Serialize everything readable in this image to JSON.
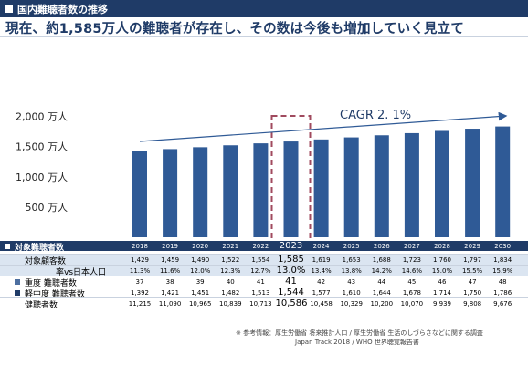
{
  "header": {
    "title": "国内難聴者数の推移"
  },
  "headline": "現在、約1,585万人の難聴者が存在し、その数は今後も増加していく見立て",
  "colors": {
    "bar": "#2f5a96",
    "header_bg": "#1f3b67",
    "highlight_border": "#a04a5e"
  },
  "chart_data": {
    "type": "bar",
    "categories": [
      "2018",
      "2019",
      "2020",
      "2021",
      "2022",
      "2023",
      "2024",
      "2025",
      "2026",
      "2027",
      "2028",
      "2029",
      "2030"
    ],
    "values": [
      1429,
      1459,
      1490,
      1522,
      1554,
      1585,
      1619,
      1653,
      1688,
      1723,
      1760,
      1797,
      1834
    ],
    "ylim": [
      0,
      2000
    ],
    "yticks": [
      {
        "value": 500,
        "label": "500 万人"
      },
      {
        "value": 1000,
        "label": "1,000 万人"
      },
      {
        "value": 1500,
        "label": "1,500 万人"
      },
      {
        "value": 2000,
        "label": "2,000 万人"
      }
    ],
    "highlight_category": "2023",
    "annotation": "CAGR 2. 1%",
    "grid": false
  },
  "table": {
    "header_label": "対象難聴者数",
    "years": [
      "2018",
      "2019",
      "2020",
      "2021",
      "2022",
      "2023",
      "2024",
      "2025",
      "2026",
      "2027",
      "2028",
      "2029",
      "2030"
    ],
    "rows": [
      {
        "label": "対象顧客数",
        "values": [
          "1,429",
          "1,459",
          "1,490",
          "1,522",
          "1,554",
          "1,585",
          "1,619",
          "1,653",
          "1,688",
          "1,723",
          "1,760",
          "1,797",
          "1,834"
        ]
      },
      {
        "label": "率vs日本人口",
        "values": [
          "11.3%",
          "11.6%",
          "12.0%",
          "12.3%",
          "12.7%",
          "13.0%",
          "13.4%",
          "13.8%",
          "14.2%",
          "14.6%",
          "15.0%",
          "15.5%",
          "15.9%"
        ]
      },
      {
        "label": "重度 難聴者数",
        "values": [
          "37",
          "38",
          "39",
          "40",
          "41",
          "41",
          "42",
          "43",
          "44",
          "45",
          "46",
          "47",
          "48"
        ]
      },
      {
        "label": "軽中度 難聴者数",
        "values": [
          "1,392",
          "1,421",
          "1,451",
          "1,482",
          "1,513",
          "1,544",
          "1,577",
          "1,610",
          "1,644",
          "1,678",
          "1,714",
          "1,750",
          "1,786"
        ]
      },
      {
        "label": "健聴者数",
        "values": [
          "11,215",
          "11,090",
          "10,965",
          "10,839",
          "10,713",
          "10,586",
          "10,458",
          "10,329",
          "10,200",
          "10,070",
          "9,939",
          "9,808",
          "9,676"
        ]
      }
    ]
  },
  "footnote": {
    "line1": "※ 参考情報：厚生労働省 将来推計人口 / 厚生労働省 生活のしづらさなどに関する調査",
    "line2": "Japan Track 2018 / WHO 世界聴覚報告書"
  }
}
